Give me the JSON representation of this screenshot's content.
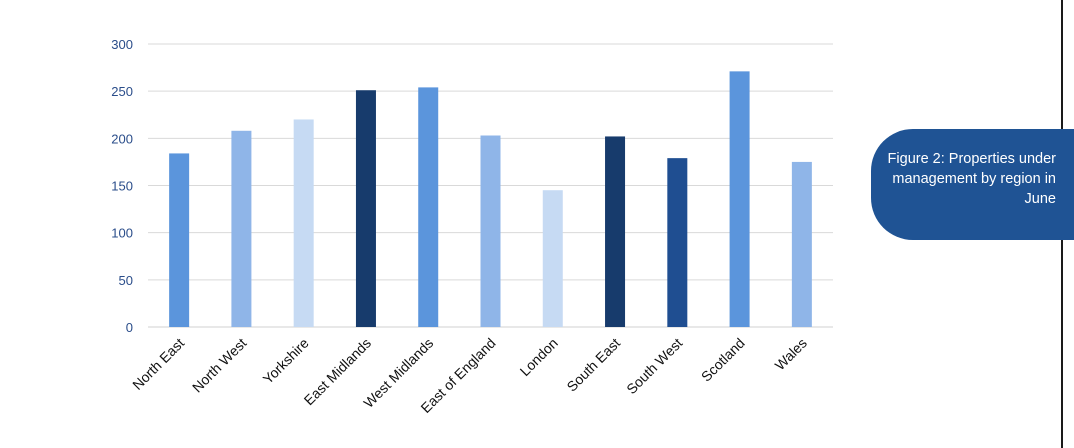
{
  "caption": {
    "text": "Figure 2:  Properties under management by region in June"
  },
  "colors": {
    "axis": "#d0d0d0",
    "grid": "#d9d9d9",
    "tick_text": "#2a4d8a",
    "caption_bg": "#1f5394"
  },
  "chart_data": {
    "type": "bar",
    "title": "",
    "xlabel": "",
    "ylabel": "",
    "ylim": [
      0,
      300
    ],
    "yticks": [
      "0",
      "50",
      "100",
      "150",
      "200",
      "250",
      "300"
    ],
    "grid": true,
    "legend": "none",
    "categories": [
      "North East",
      "North West",
      "Yorkshire",
      "East Midlands",
      "West Midlands",
      "East of England",
      "London",
      "South East",
      "South West",
      "Scotland",
      "Wales"
    ],
    "values": [
      184,
      208,
      220,
      251,
      254,
      203,
      145,
      202,
      179,
      271,
      175
    ],
    "bar_colors": [
      "#5b95dc",
      "#8fb5e8",
      "#c6daf3",
      "#173b6c",
      "#5b95dc",
      "#8fb5e8",
      "#c6daf3",
      "#173b6c",
      "#1f4e91",
      "#5b95dc",
      "#8fb5e8"
    ]
  }
}
